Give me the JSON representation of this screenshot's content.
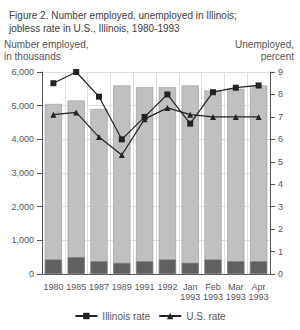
{
  "chart_data": {
    "type": "bar",
    "title": "Figure 2. Number employed, unemployed in Illinois;\njobless rate in U.S., Illinois, 1980-1993",
    "ylabel": "Number employed,\nin thousands",
    "y2label": "Unemployed,\npercent",
    "categories": [
      "1980",
      "1985",
      "1987",
      "1989",
      "1991",
      "1992",
      "Jan\n1993",
      "Feb\n1993",
      "Mar\n1993",
      "Apr\n1993"
    ],
    "series": [
      {
        "type": "bar",
        "color": "#c0c0c0",
        "values": [
          5050,
          5150,
          4900,
          5600,
          5550,
          5550,
          5600,
          5450,
          5500,
          5600
        ]
      },
      {
        "type": "bar",
        "color": "#606060",
        "values": [
          430,
          500,
          380,
          330,
          380,
          430,
          330,
          430,
          380,
          380
        ]
      },
      {
        "type": "line",
        "name": "Illinois rate",
        "axis": "y2",
        "color": "#222222",
        "marker": "square",
        "values": [
          8.5,
          9.0,
          7.9,
          6.0,
          7.0,
          8.0,
          6.7,
          8.1,
          8.3,
          8.4
        ]
      },
      {
        "type": "line",
        "name": "U.S. rate",
        "axis": "y2",
        "color": "#222222",
        "marker": "triangle",
        "values": [
          7.1,
          7.2,
          6.1,
          5.3,
          6.9,
          7.4,
          7.1,
          7.0,
          7.0,
          7.0
        ]
      }
    ],
    "ylim": [
      0,
      6000
    ],
    "yticks": [
      0,
      {
        "value": 1000,
        "label": "1,000"
      },
      {
        "value": 2000,
        "label": "2,000"
      },
      {
        "value": 3000,
        "label": "3,000"
      },
      {
        "value": 4000,
        "label": "4,000"
      },
      {
        "value": 5000,
        "label": "5,000"
      },
      {
        "value": 6000,
        "label": "6,000"
      }
    ],
    "y2lim": [
      0,
      9
    ],
    "y2ticks": [
      0,
      1,
      2,
      3,
      4,
      5,
      6,
      7,
      8,
      9
    ],
    "grid": true,
    "legend": "bottom"
  }
}
